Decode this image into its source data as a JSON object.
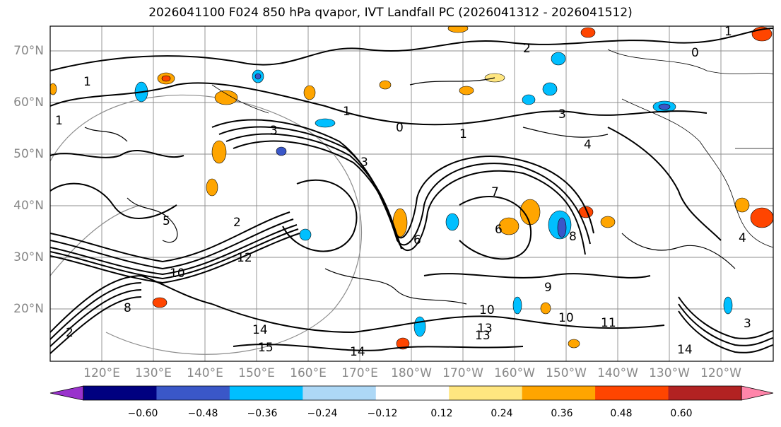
{
  "title": "2026041100 F024 850 hPa qvapor, IVT Landfall PC (2026041312 - 2026041512)",
  "lat_labels": [
    "70°N",
    "60°N",
    "50°N",
    "40°N",
    "30°N",
    "20°N"
  ],
  "lon_labels": [
    "120°E",
    "130°E",
    "140°E",
    "150°E",
    "160°E",
    "170°E",
    "180°W",
    "170°W",
    "160°W",
    "150°W",
    "140°W",
    "130°W",
    "120°W"
  ],
  "colorbar": {
    "ticks": [
      "−0.60",
      "−0.48",
      "−0.36",
      "−0.24",
      "−0.12",
      "0.12",
      "0.24",
      "0.36",
      "0.48",
      "0.60"
    ],
    "colors": [
      "#9932CC",
      "#000080",
      "#3A57C8",
      "#00BFFF",
      "#ADD8F6",
      "#FFFFFF",
      "#FFE680",
      "#FFA500",
      "#FF4500",
      "#B22222",
      "#FF85AA"
    ]
  },
  "contour_labels": [
    "1",
    "1",
    "2",
    "0",
    "1",
    "3",
    "1",
    "0",
    "1",
    "3",
    "4",
    "3",
    "7",
    "6",
    "8",
    "9",
    "10",
    "11",
    "10",
    "13",
    "14",
    "15",
    "14",
    "13",
    "14",
    "3",
    "4",
    "8",
    "5",
    "10",
    "12",
    "2",
    "6",
    "2"
  ]
}
